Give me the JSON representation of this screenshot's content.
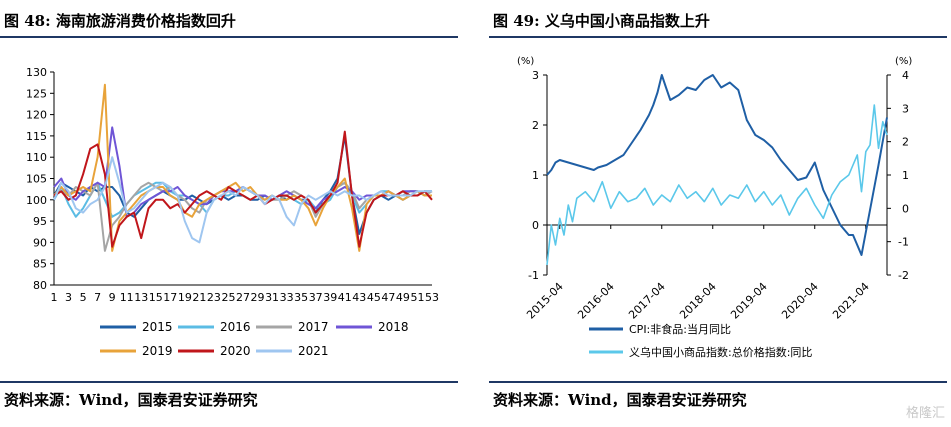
{
  "left": {
    "title": "图 48: 海南旅游消费价格指数回升",
    "source": "资料来源：Wind，国泰君安证券研究",
    "chart_data": {
      "type": "line",
      "ylim": [
        80,
        130
      ],
      "yticks": [
        80,
        85,
        90,
        95,
        100,
        105,
        110,
        115,
        120,
        125,
        130
      ],
      "xlim": [
        1,
        53
      ],
      "xticks": [
        1,
        3,
        5,
        7,
        9,
        11,
        13,
        15,
        17,
        19,
        21,
        23,
        25,
        27,
        29,
        31,
        33,
        35,
        37,
        39,
        41,
        43,
        45,
        47,
        49,
        51,
        53
      ],
      "legend_position": "bottom",
      "grid": false,
      "series": [
        {
          "name": "2015",
          "color": "#1f5fa5",
          "x": [
            1,
            2,
            3,
            4,
            5,
            6,
            7,
            8,
            9,
            10,
            11,
            12,
            13,
            14,
            15,
            16,
            17,
            18,
            19,
            20,
            21,
            22,
            23,
            24,
            25,
            26,
            27,
            28,
            29,
            30,
            31,
            32,
            33,
            34,
            35,
            36,
            37,
            38,
            39,
            40,
            41,
            42,
            43,
            44,
            45,
            46,
            47,
            48,
            49,
            50,
            51,
            52,
            53
          ],
          "y": [
            101,
            104,
            103,
            102,
            101,
            103,
            102,
            103,
            103,
            101,
            97,
            96,
            98,
            100,
            101,
            102,
            101,
            100,
            100,
            101,
            100,
            99,
            100,
            101,
            100,
            101,
            101,
            100,
            100,
            101,
            100,
            101,
            100,
            101,
            100,
            100,
            97,
            100,
            102,
            105,
            115,
            101,
            92,
            97,
            100,
            101,
            100,
            101,
            100,
            101,
            101,
            102,
            102
          ]
        },
        {
          "name": "2016",
          "color": "#5bbce4",
          "x": [
            1,
            2,
            3,
            4,
            5,
            6,
            7,
            8,
            9,
            10,
            11,
            12,
            13,
            14,
            15,
            16,
            17,
            18,
            19,
            20,
            21,
            22,
            23,
            24,
            25,
            26,
            27,
            28,
            29,
            30,
            31,
            32,
            33,
            34,
            35,
            36,
            37,
            38,
            39,
            40,
            41,
            42,
            43,
            44,
            45,
            46,
            47,
            48,
            49,
            50,
            51,
            52,
            53
          ],
          "y": [
            100,
            103,
            99,
            96,
            98,
            101,
            104,
            100,
            96,
            97,
            99,
            101,
            102,
            103,
            104,
            104,
            102,
            101,
            101,
            100,
            99,
            97,
            100,
            101,
            101,
            102,
            103,
            102,
            101,
            100,
            101,
            100,
            101,
            100,
            99,
            100,
            98,
            99,
            100,
            103,
            104,
            101,
            97,
            99,
            101,
            102,
            102,
            101,
            101,
            102,
            102,
            101,
            101
          ]
        },
        {
          "name": "2017",
          "color": "#a5a5a5",
          "x": [
            1,
            2,
            3,
            4,
            5,
            6,
            7,
            8,
            9,
            10,
            11,
            12,
            13,
            14,
            15,
            16,
            17,
            18,
            19,
            20,
            21,
            22,
            23,
            24,
            25,
            26,
            27,
            28,
            29,
            30,
            31,
            32,
            33,
            34,
            35,
            36,
            37,
            38,
            39,
            40,
            41,
            42,
            43,
            44,
            45,
            46,
            47,
            48,
            49,
            50,
            51,
            52,
            53
          ],
          "y": [
            101,
            102,
            101,
            103,
            102,
            101,
            104,
            88,
            94,
            96,
            99,
            101,
            103,
            104,
            103,
            102,
            103,
            101,
            100,
            98,
            97,
            100,
            101,
            102,
            103,
            102,
            103,
            102,
            101,
            101,
            100,
            100,
            101,
            102,
            101,
            100,
            96,
            99,
            101,
            103,
            104,
            102,
            98,
            100,
            101,
            101,
            102,
            101,
            101,
            102,
            102,
            101,
            102
          ]
        },
        {
          "name": "2018",
          "color": "#6f55d6",
          "x": [
            1,
            2,
            3,
            4,
            5,
            6,
            7,
            8,
            9,
            10,
            11,
            12,
            13,
            14,
            15,
            16,
            17,
            18,
            19,
            20,
            21,
            22,
            23,
            24,
            25,
            26,
            27,
            28,
            29,
            30,
            31,
            32,
            33,
            34,
            35,
            36,
            37,
            38,
            39,
            40,
            41,
            42,
            43,
            44,
            45,
            46,
            47,
            48,
            49,
            50,
            51,
            52,
            53
          ],
          "y": [
            103,
            105,
            101,
            100,
            102,
            103,
            104,
            103,
            117,
            108,
            96,
            97,
            99,
            100,
            101,
            102,
            102,
            103,
            101,
            100,
            99,
            99,
            101,
            102,
            102,
            102,
            103,
            102,
            101,
            101,
            100,
            101,
            102,
            101,
            100,
            99,
            98,
            100,
            101,
            102,
            103,
            102,
            100,
            101,
            101,
            101,
            102,
            101,
            102,
            102,
            102,
            101,
            101
          ]
        },
        {
          "name": "2019",
          "color": "#e8a33a",
          "x": [
            1,
            2,
            3,
            4,
            5,
            6,
            7,
            8,
            9,
            10,
            11,
            12,
            13,
            14,
            15,
            16,
            17,
            18,
            19,
            20,
            21,
            22,
            23,
            24,
            25,
            26,
            27,
            28,
            29,
            30,
            31,
            32,
            33,
            34,
            35,
            36,
            37,
            38,
            39,
            40,
            41,
            42,
            43,
            44,
            45,
            46,
            47,
            48,
            49,
            50,
            51,
            52,
            53
          ],
          "y": [
            101,
            103,
            101,
            102,
            103,
            102,
            110,
            127,
            88,
            95,
            97,
            99,
            101,
            102,
            103,
            103,
            101,
            100,
            97,
            96,
            99,
            100,
            101,
            102,
            103,
            104,
            102,
            103,
            101,
            100,
            101,
            100,
            100,
            101,
            100,
            98,
            94,
            98,
            101,
            103,
            105,
            98,
            88,
            99,
            101,
            101,
            102,
            101,
            100,
            101,
            102,
            101,
            101
          ]
        },
        {
          "name": "2020",
          "color": "#c0161b",
          "x": [
            1,
            2,
            3,
            4,
            5,
            6,
            7,
            8,
            9,
            10,
            11,
            12,
            13,
            14,
            15,
            16,
            17,
            18,
            19,
            20,
            21,
            22,
            23,
            24,
            25,
            26,
            27,
            28,
            29,
            30,
            31,
            32,
            33,
            34,
            35,
            36,
            37,
            38,
            39,
            40,
            41,
            42,
            43,
            44,
            45,
            46,
            47,
            48,
            49,
            50,
            51,
            52,
            53
          ],
          "y": [
            101,
            102,
            100,
            101,
            106,
            112,
            113,
            106,
            89,
            94,
            96,
            97,
            91,
            98,
            100,
            100,
            98,
            99,
            97,
            99,
            101,
            102,
            101,
            100,
            103,
            102,
            101,
            100,
            101,
            99,
            100,
            101,
            101,
            100,
            101,
            100,
            97,
            99,
            101,
            104,
            116,
            101,
            89,
            97,
            100,
            101,
            101,
            101,
            102,
            101,
            101,
            102,
            100
          ]
        },
        {
          "name": "2021",
          "color": "#9fc6f0",
          "x": [
            1,
            2,
            3,
            4,
            5,
            6,
            7,
            8,
            9,
            10,
            11,
            12,
            13,
            14,
            15,
            16,
            17,
            18,
            19,
            20,
            21,
            22,
            23,
            24,
            25,
            26,
            27,
            28,
            29,
            30,
            31,
            32,
            33,
            34,
            35,
            36,
            37,
            38,
            39,
            40,
            41,
            42,
            43,
            44,
            45,
            46,
            47,
            48,
            49,
            50,
            51,
            52,
            53
          ],
          "y": [
            100,
            104,
            102,
            98,
            97,
            99,
            100,
            103,
            110,
            104,
            97,
            98,
            100,
            102,
            103,
            104,
            103,
            101,
            95,
            91,
            90,
            97,
            100,
            101,
            102,
            101,
            103,
            102,
            101,
            99,
            101,
            100,
            96,
            94,
            99,
            101,
            100,
            101,
            102,
            101,
            102,
            101,
            101,
            100,
            101,
            102,
            101,
            101,
            101,
            101,
            102,
            102,
            102
          ]
        }
      ]
    }
  },
  "right": {
    "title": "图 49: 义乌中国小商品指数上升",
    "source": "资料来源：Wind，国泰君安证券研究",
    "watermark": "格隆汇",
    "chart_data": {
      "type": "line",
      "left_axis": {
        "label": "(%)",
        "ylim": [
          -1,
          3
        ],
        "ticks": [
          -1,
          0,
          1,
          2,
          3
        ]
      },
      "right_axis": {
        "label": "(%)",
        "ylim": [
          -2,
          4
        ],
        "ticks": [
          -2,
          -1,
          0,
          1,
          2,
          3,
          4
        ]
      },
      "xlim": [
        "2015-01",
        "2021-09"
      ],
      "xticks": [
        "2015-04",
        "2016-04",
        "2017-04",
        "2018-04",
        "2019-04",
        "2020-04",
        "2021-04"
      ],
      "legend_position": "bottom",
      "grid": false,
      "series": [
        {
          "name": "CPI:非食品:当月同比",
          "axis": "left",
          "color": "#1f5fa5",
          "x": [
            "2015-01",
            "2015-02",
            "2015-03",
            "2015-04",
            "2015-06",
            "2015-08",
            "2015-10",
            "2015-12",
            "2016-01",
            "2016-03",
            "2016-05",
            "2016-07",
            "2016-09",
            "2016-11",
            "2017-01",
            "2017-02",
            "2017-03",
            "2017-04",
            "2017-05",
            "2017-06",
            "2017-08",
            "2017-10",
            "2017-12",
            "2018-02",
            "2018-04",
            "2018-06",
            "2018-08",
            "2018-10",
            "2018-12",
            "2019-02",
            "2019-04",
            "2019-06",
            "2019-08",
            "2019-10",
            "2019-12",
            "2020-02",
            "2020-04",
            "2020-06",
            "2020-08",
            "2020-10",
            "2020-12",
            "2021-01",
            "2021-03",
            "2021-05",
            "2021-07",
            "2021-09"
          ],
          "y": [
            1.0,
            1.1,
            1.25,
            1.3,
            1.25,
            1.2,
            1.15,
            1.1,
            1.15,
            1.2,
            1.3,
            1.4,
            1.65,
            1.9,
            2.2,
            2.4,
            2.65,
            3.0,
            2.75,
            2.5,
            2.6,
            2.75,
            2.7,
            2.9,
            3.0,
            2.75,
            2.85,
            2.7,
            2.1,
            1.8,
            1.7,
            1.55,
            1.3,
            1.1,
            0.9,
            0.95,
            1.25,
            0.7,
            0.35,
            0.0,
            -0.2,
            -0.2,
            -0.6,
            0.3,
            1.2,
            2.15
          ]
        },
        {
          "name": "义乌中国小商品指数:总价格指数:同比",
          "axis": "right",
          "color": "#5bc8ea",
          "x": [
            "2015-01",
            "2015-02",
            "2015-03",
            "2015-04",
            "2015-05",
            "2015-06",
            "2015-07",
            "2015-08",
            "2015-10",
            "2015-12",
            "2016-02",
            "2016-04",
            "2016-06",
            "2016-08",
            "2016-10",
            "2016-12",
            "2017-02",
            "2017-04",
            "2017-06",
            "2017-08",
            "2017-10",
            "2017-12",
            "2018-02",
            "2018-04",
            "2018-06",
            "2018-08",
            "2018-10",
            "2018-12",
            "2019-02",
            "2019-04",
            "2019-06",
            "2019-08",
            "2019-10",
            "2019-12",
            "2020-02",
            "2020-04",
            "2020-06",
            "2020-08",
            "2020-10",
            "2020-12",
            "2021-01",
            "2021-02",
            "2021-03",
            "2021-04",
            "2021-05",
            "2021-06",
            "2021-07",
            "2021-08",
            "2021-09"
          ],
          "y": [
            -1.7,
            -0.5,
            -1.1,
            -0.3,
            -0.8,
            0.1,
            -0.4,
            0.3,
            0.5,
            0.2,
            0.8,
            0.0,
            0.5,
            0.2,
            0.3,
            0.6,
            0.1,
            0.4,
            0.2,
            0.7,
            0.3,
            0.5,
            0.2,
            0.6,
            0.1,
            0.4,
            0.3,
            0.7,
            0.2,
            0.5,
            0.1,
            0.4,
            -0.2,
            0.3,
            0.6,
            0.1,
            -0.3,
            0.4,
            0.8,
            1.0,
            1.3,
            1.6,
            0.5,
            1.7,
            1.9,
            3.1,
            1.8,
            2.6,
            2.2
          ]
        }
      ]
    }
  }
}
